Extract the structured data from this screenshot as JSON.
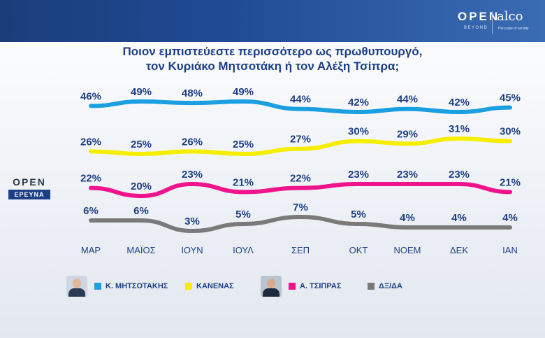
{
  "header": {
    "brand_open": "OPEN",
    "brand_beyond": "BEYOND",
    "brand_alco": "alco",
    "brand_alco_sub": "The pulse of society"
  },
  "title_line1": "Ποιον εμπιστεύεστε περισσότερο ως πρωθυπουργό,",
  "title_line2": "τον Κυριάκο Μητσοτάκη ή τον Αλέξη Τσίπρα;",
  "side_logo": {
    "open": "OPEN",
    "erevna": "ΕΡΕΥΝΑ"
  },
  "colors": {
    "blue": "#1aa0e0",
    "yellow": "#f5ee00",
    "pink": "#f0148c",
    "gray": "#7a7a7a",
    "label": "#1d3f85"
  },
  "chart_data": {
    "type": "line",
    "categories": [
      "ΜΑΡ",
      "ΜΑΪΟΣ",
      "ΙΟΥΝ",
      "ΙΟΥΛ",
      "ΣΕΠ",
      "ΟΚΤ",
      "ΝΟΕΜ",
      "ΔΕΚ",
      "ΙΑΝ"
    ],
    "series": [
      {
        "name": "Κ. ΜΗΤΣΟΤΑΚΗΣ",
        "color": "#1aa0e0",
        "values": [
          46,
          49,
          48,
          49,
          44,
          42,
          44,
          42,
          45
        ]
      },
      {
        "name": "ΚΑΝΕΝΑΣ",
        "color": "#f5ee00",
        "values": [
          26,
          25,
          26,
          25,
          27,
          30,
          29,
          31,
          30
        ]
      },
      {
        "name": "Α. ΤΣΙΠΡΑΣ",
        "color": "#f0148c",
        "values": [
          22,
          20,
          23,
          21,
          22,
          23,
          23,
          23,
          21
        ]
      },
      {
        "name": "ΔΞ/ΔΑ",
        "color": "#7a7a7a",
        "values": [
          6,
          6,
          3,
          5,
          7,
          5,
          4,
          4,
          4
        ]
      }
    ],
    "value_suffix": "%",
    "grid": false,
    "legend_position": "bottom"
  }
}
